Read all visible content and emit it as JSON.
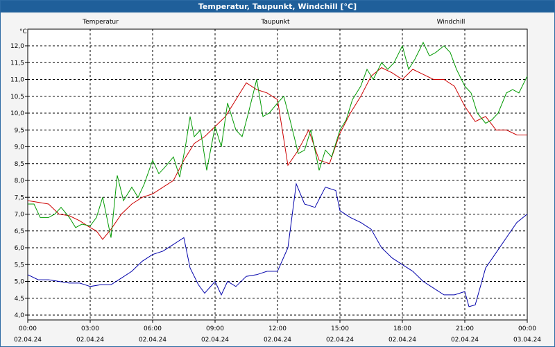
{
  "window": {
    "title": "Temperatur, Taupunkt, Windchill [°C]"
  },
  "colors": {
    "temperatur": "#cc0000",
    "taupunkt": "#0000aa",
    "windchill": "#009900",
    "grid": "#000000",
    "titlebar": "#1f5f9a"
  },
  "chart_data": {
    "type": "line",
    "title": "Temperatur, Taupunkt, Windchill [°C]",
    "ylabel": "°C",
    "ylim": [
      4.0,
      12.0
    ],
    "y_ticks": [
      "4,0",
      "4,5",
      "5,0",
      "5,5",
      "6,0",
      "6,5",
      "7,0",
      "7,5",
      "8,0",
      "8,5",
      "9,0",
      "9,5",
      "10,0",
      "10,5",
      "11,0",
      "11,5",
      "12,0"
    ],
    "xlim": [
      0,
      24
    ],
    "x_ticks": [
      {
        "time": "00:00",
        "date": "02.04.24"
      },
      {
        "time": "03:00",
        "date": "02.04.24"
      },
      {
        "time": "06:00",
        "date": "02.04.24"
      },
      {
        "time": "09:00",
        "date": "02.04.24"
      },
      {
        "time": "12:00",
        "date": "02.04.24"
      },
      {
        "time": "15:00",
        "date": "02.04.24"
      },
      {
        "time": "18:00",
        "date": "02.04.24"
      },
      {
        "time": "21:00",
        "date": "02.04.24"
      },
      {
        "time": "00:00",
        "date": "03.04.24"
      }
    ],
    "grid": true,
    "series": [
      {
        "name": "Temperatur",
        "x": [
          0,
          0.5,
          1,
          1.5,
          2,
          2.5,
          3,
          3.3,
          3.6,
          4,
          4.5,
          5,
          5.5,
          6,
          6.5,
          7,
          7.5,
          8,
          8.5,
          9,
          9.5,
          10,
          10.5,
          11,
          11.5,
          12,
          12.5,
          13,
          13.5,
          14,
          14.5,
          15,
          15.5,
          16,
          16.5,
          17,
          17.5,
          18,
          18.5,
          19,
          19.5,
          20,
          20.5,
          21,
          21.5,
          22,
          22.5,
          23,
          23.5,
          24
        ],
        "values": [
          7.4,
          7.35,
          7.3,
          7.0,
          6.95,
          6.8,
          6.6,
          6.5,
          6.25,
          6.55,
          7.0,
          7.3,
          7.5,
          7.6,
          7.8,
          8.0,
          8.6,
          9.1,
          9.3,
          9.6,
          9.9,
          10.4,
          10.9,
          10.7,
          10.6,
          10.4,
          8.45,
          8.9,
          9.5,
          8.6,
          8.5,
          9.4,
          10.0,
          10.5,
          11.1,
          11.35,
          11.2,
          11.0,
          11.3,
          11.15,
          11.0,
          11.0,
          10.8,
          10.2,
          9.75,
          9.9,
          9.5,
          9.5,
          9.35,
          9.35
        ]
      },
      {
        "name": "Taupunkt",
        "x": [
          0,
          0.5,
          1,
          1.5,
          2,
          2.5,
          3,
          3.5,
          4,
          4.5,
          5,
          5.5,
          6,
          6.5,
          7,
          7.5,
          7.8,
          8.2,
          8.5,
          9,
          9.3,
          9.6,
          10,
          10.5,
          11,
          11.5,
          12,
          12.5,
          12.9,
          13.3,
          13.8,
          14.3,
          14.8,
          15,
          15.5,
          16,
          16.5,
          17,
          17.5,
          18,
          18.5,
          19,
          19.5,
          20,
          20.5,
          21,
          21.2,
          21.5,
          22,
          22.5,
          23,
          23.5,
          24
        ],
        "values": [
          5.2,
          5.05,
          5.05,
          5.0,
          4.95,
          4.95,
          4.85,
          4.9,
          4.9,
          5.1,
          5.3,
          5.6,
          5.8,
          5.9,
          6.1,
          6.3,
          5.4,
          4.9,
          4.65,
          5.0,
          4.6,
          5.0,
          4.85,
          5.15,
          5.2,
          5.3,
          5.3,
          6.0,
          7.9,
          7.3,
          7.2,
          7.8,
          7.7,
          7.1,
          6.9,
          6.75,
          6.55,
          6.0,
          5.7,
          5.5,
          5.3,
          5.0,
          4.8,
          4.6,
          4.6,
          4.7,
          4.25,
          4.3,
          5.4,
          5.85,
          6.3,
          6.75,
          7.0
        ]
      },
      {
        "name": "Windchill",
        "x": [
          0,
          0.3,
          0.6,
          1,
          1.3,
          1.6,
          2,
          2.3,
          2.6,
          3,
          3.3,
          3.6,
          4,
          4.3,
          4.6,
          5,
          5.3,
          5.6,
          6,
          6.3,
          6.6,
          7,
          7.3,
          7.6,
          7.8,
          8.0,
          8.3,
          8.6,
          9,
          9.3,
          9.6,
          10,
          10.3,
          10.6,
          11,
          11.3,
          11.6,
          12,
          12.3,
          12.6,
          13,
          13.3,
          13.6,
          14,
          14.3,
          14.6,
          15,
          15.3,
          15.6,
          16,
          16.3,
          16.6,
          17,
          17.3,
          17.6,
          18,
          18.3,
          18.6,
          19,
          19.3,
          19.6,
          20,
          20.3,
          20.6,
          21,
          21.3,
          21.6,
          22,
          22.3,
          22.6,
          23,
          23.3,
          23.6,
          24
        ],
        "values": [
          7.3,
          7.3,
          6.9,
          6.9,
          7.0,
          7.2,
          6.9,
          6.6,
          6.7,
          6.65,
          6.9,
          7.5,
          6.3,
          8.15,
          7.4,
          7.8,
          7.5,
          7.9,
          8.6,
          8.2,
          8.4,
          8.7,
          8.1,
          9.1,
          9.9,
          9.3,
          9.5,
          8.3,
          9.6,
          9.0,
          10.3,
          9.5,
          9.3,
          10.0,
          11.0,
          9.9,
          10.0,
          10.3,
          10.5,
          9.8,
          8.8,
          8.9,
          9.5,
          8.3,
          8.9,
          8.7,
          9.5,
          9.8,
          10.4,
          10.8,
          11.3,
          11.0,
          11.5,
          11.3,
          11.5,
          12.0,
          11.3,
          11.6,
          12.1,
          11.7,
          11.8,
          12.0,
          11.8,
          11.3,
          10.8,
          10.6,
          10.0,
          9.7,
          9.8,
          10.0,
          10.6,
          10.7,
          10.6,
          11.1
        ]
      }
    ]
  }
}
